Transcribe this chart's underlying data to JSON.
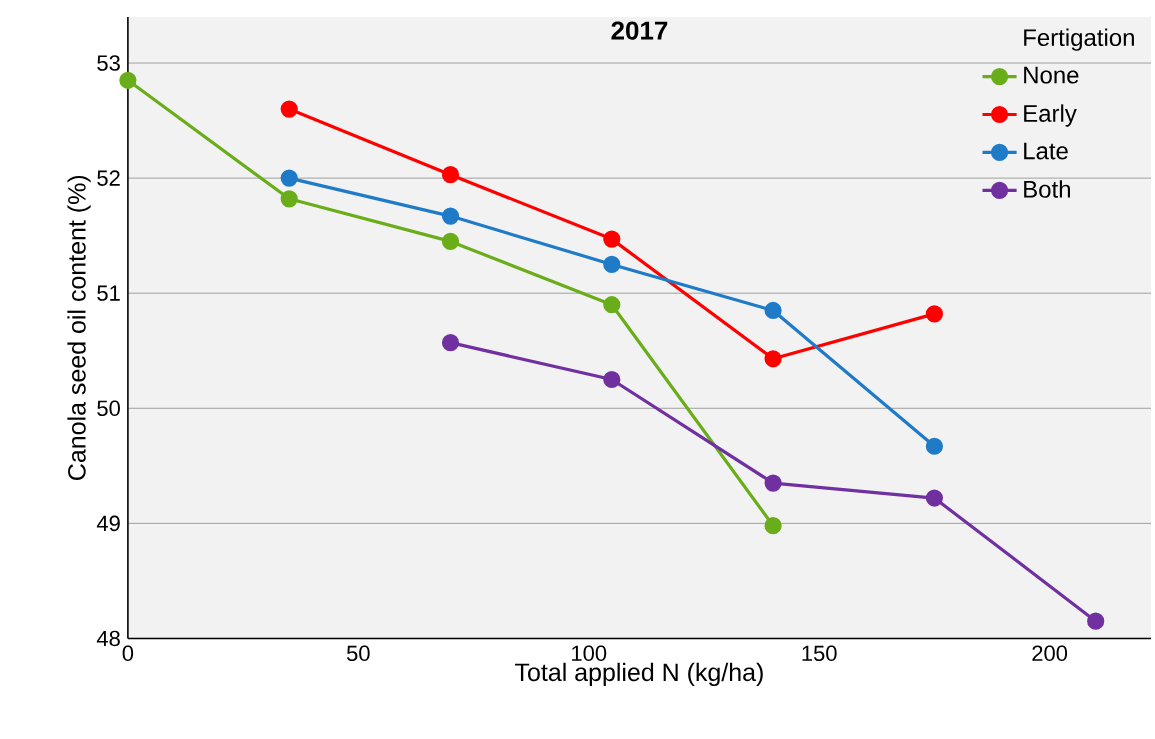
{
  "chart_data": {
    "type": "line",
    "title": "2017",
    "xlabel": "Total applied N (kg/ha)",
    "ylabel": "Canola seed oil content (%)",
    "legend_title": "Fertigation",
    "xlim": [
      0,
      222
    ],
    "xticks": [
      0,
      50,
      100,
      150,
      200
    ],
    "ylim": [
      48,
      53.4
    ],
    "yticks": [
      48,
      49,
      50,
      51,
      52,
      53
    ],
    "grid": "y",
    "legend": "top right",
    "marker": "circle",
    "line_style": "solid",
    "series": [
      {
        "name": "None",
        "color": "#6aad1a",
        "x": [
          0,
          35,
          70,
          105,
          140
        ],
        "values": [
          52.85,
          51.82,
          51.45,
          50.9,
          48.98
        ]
      },
      {
        "name": "Early",
        "color": "#ff0000",
        "x": [
          35,
          70,
          105,
          140,
          175
        ],
        "values": [
          52.6,
          52.03,
          51.47,
          50.43,
          50.82
        ]
      },
      {
        "name": "Late",
        "color": "#1f7bc8",
        "x": [
          35,
          70,
          105,
          140,
          175
        ],
        "values": [
          52.0,
          51.67,
          51.25,
          50.85,
          49.67
        ]
      },
      {
        "name": "Both",
        "color": "#7030a0",
        "x": [
          70,
          105,
          140,
          175,
          210
        ],
        "values": [
          50.57,
          50.25,
          49.35,
          49.22,
          48.15
        ]
      }
    ]
  }
}
